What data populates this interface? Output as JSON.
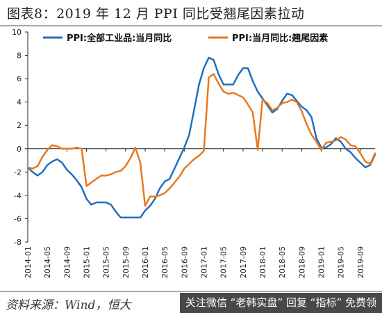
{
  "title": "图表8：2019 年 12 月 PPI 同比受翘尾因素拉动",
  "source": "资料来源：Wind，恒大",
  "watermark": "关注微信 “老韩实盘” 回复 “指标” 免费领",
  "colors": {
    "series_all": "#1f6fbf",
    "series_carryover": "#e8791e",
    "axis": "#222222"
  },
  "chart_data": {
    "type": "line",
    "title": "图表8：2019 年 12 月 PPI 同比受翘尾因素拉动",
    "xlabel": "",
    "ylabel": "",
    "ylim": [
      -8,
      10
    ],
    "yticks": [
      -8,
      -6,
      -4,
      -2,
      0,
      2,
      4,
      6,
      8,
      10
    ],
    "x_tick_labels": [
      "2014-01",
      "2014-05",
      "2014-09",
      "2015-01",
      "2015-05",
      "2015-09",
      "2016-01",
      "2016-05",
      "2016-09",
      "2017-01",
      "2017-05",
      "2017-09",
      "2018-01",
      "2018-05",
      "2018-09",
      "2019-01",
      "2019-05",
      "2019-09"
    ],
    "grid": false,
    "legend_position": "top",
    "x": [
      "2014-01",
      "2014-02",
      "2014-03",
      "2014-04",
      "2014-05",
      "2014-06",
      "2014-07",
      "2014-08",
      "2014-09",
      "2014-10",
      "2014-11",
      "2014-12",
      "2015-01",
      "2015-02",
      "2015-03",
      "2015-04",
      "2015-05",
      "2015-06",
      "2015-07",
      "2015-08",
      "2015-09",
      "2015-10",
      "2015-11",
      "2015-12",
      "2016-01",
      "2016-02",
      "2016-03",
      "2016-04",
      "2016-05",
      "2016-06",
      "2016-07",
      "2016-08",
      "2016-09",
      "2016-10",
      "2016-11",
      "2016-12",
      "2017-01",
      "2017-02",
      "2017-03",
      "2017-04",
      "2017-05",
      "2017-06",
      "2017-07",
      "2017-08",
      "2017-09",
      "2017-10",
      "2017-11",
      "2017-12",
      "2018-01",
      "2018-02",
      "2018-03",
      "2018-04",
      "2018-05",
      "2018-06",
      "2018-07",
      "2018-08",
      "2018-09",
      "2018-10",
      "2018-11",
      "2018-12",
      "2019-01",
      "2019-02",
      "2019-03",
      "2019-04",
      "2019-05",
      "2019-06",
      "2019-07",
      "2019-08",
      "2019-09",
      "2019-10",
      "2019-11",
      "2019-12"
    ],
    "series": [
      {
        "name": "PPI:全部工业品:当月同比",
        "values": [
          -1.6,
          -2.0,
          -2.3,
          -2.0,
          -1.4,
          -1.1,
          -0.9,
          -1.2,
          -1.8,
          -2.2,
          -2.7,
          -3.3,
          -4.3,
          -4.8,
          -4.6,
          -4.6,
          -4.6,
          -4.8,
          -5.4,
          -5.9,
          -5.9,
          -5.9,
          -5.9,
          -5.9,
          -5.3,
          -4.9,
          -4.3,
          -3.4,
          -2.8,
          -2.6,
          -1.7,
          -0.8,
          0.1,
          1.2,
          3.3,
          5.5,
          6.9,
          7.8,
          7.6,
          6.4,
          5.5,
          5.5,
          5.5,
          6.3,
          6.9,
          6.9,
          5.8,
          4.9,
          4.3,
          3.7,
          3.1,
          3.4,
          4.1,
          4.7,
          4.6,
          4.1,
          3.6,
          3.3,
          2.7,
          0.9,
          0.1,
          0.1,
          0.4,
          0.9,
          0.6,
          0.0,
          -0.3,
          -0.8,
          -1.2,
          -1.6,
          -1.4,
          -0.5
        ]
      },
      {
        "name": "PPI:当月同比:翘尾因素",
        "values": [
          -1.6,
          -1.7,
          -1.5,
          -0.7,
          -0.1,
          0.3,
          0.2,
          0.0,
          0.0,
          0.0,
          0.1,
          0.0,
          -3.2,
          -2.9,
          -2.6,
          -2.3,
          -2.3,
          -2.2,
          -2.0,
          -1.9,
          -1.5,
          -0.8,
          0.1,
          -1.2,
          -4.9,
          -4.1,
          -4.1,
          -4.0,
          -3.8,
          -3.4,
          -2.9,
          -2.4,
          -1.7,
          -1.3,
          -0.9,
          -0.6,
          -0.2,
          6.1,
          6.4,
          5.6,
          4.9,
          4.7,
          4.8,
          4.6,
          4.4,
          3.8,
          3.1,
          -0.1,
          4.2,
          3.9,
          3.3,
          3.5,
          3.9,
          4.0,
          4.2,
          4.0,
          3.2,
          2.1,
          1.2,
          0.6,
          -0.1,
          0.5,
          0.6,
          0.7,
          1.0,
          0.8,
          0.3,
          0.2,
          -0.4,
          -1.1,
          -1.3,
          -0.4
        ]
      }
    ]
  }
}
